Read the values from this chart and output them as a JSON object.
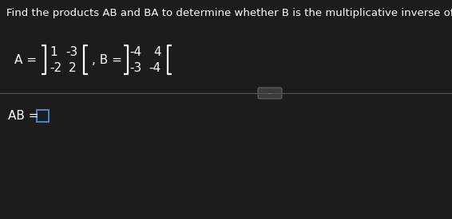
{
  "background_color": "#1c1c1c",
  "title_text": "Find the products AB and BA to determine whether B is the multiplicative inverse of A.",
  "title_color": "#ffffff",
  "title_fontsize": 9.5,
  "matrix_A_row1": [
    "1",
    "-3"
  ],
  "matrix_A_row2": [
    "-2",
    "2"
  ],
  "matrix_B_row1": [
    "-4",
    "4"
  ],
  "matrix_B_row2": [
    "-3",
    "-4"
  ],
  "text_color": "#ffffff",
  "divider_color": "#555555",
  "pill_color": "#3a3a3a",
  "pill_text": "...",
  "pill_border": "#666666",
  "box_border_color": "#4488cc",
  "font_size_matrix": 11.0,
  "font_size_label": 11.0
}
